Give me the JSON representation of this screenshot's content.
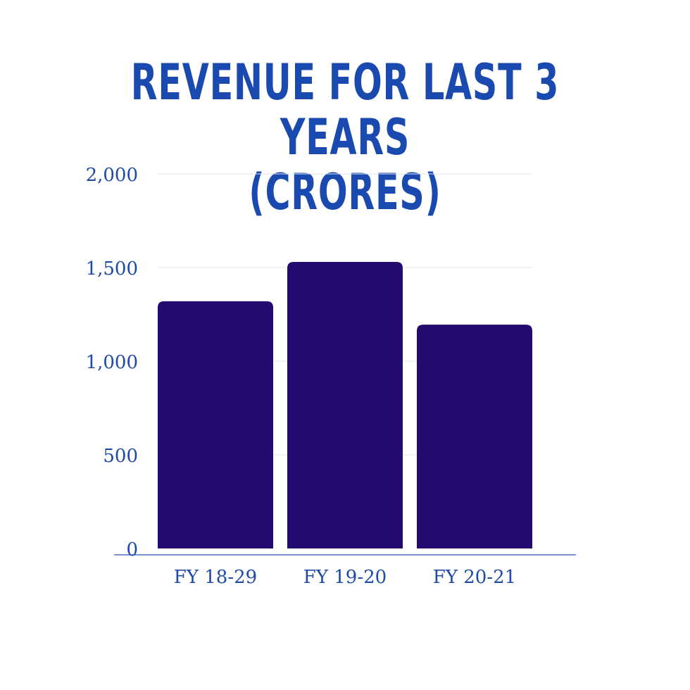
{
  "chart_data": {
    "type": "bar",
    "title": [
      "REVENUE FOR LAST 3 YEARS",
      "(CRORES)"
    ],
    "categories": [
      "FY 18-29",
      "FY 19-20",
      "FY 20-21"
    ],
    "values": [
      1320,
      1530,
      1195
    ],
    "ylim": [
      0,
      2000
    ],
    "yticks": [
      0,
      500,
      1000,
      1500,
      2000
    ],
    "ytick_labels": [
      "0",
      "500",
      "1,000",
      "1,500",
      "2,000"
    ],
    "grid": true,
    "colors": {
      "bar": "#230a6e",
      "title": "#1a49b0",
      "labels": "#1f4aa8",
      "grid": "#e4e7ee",
      "axis": "#4a72b8"
    }
  }
}
